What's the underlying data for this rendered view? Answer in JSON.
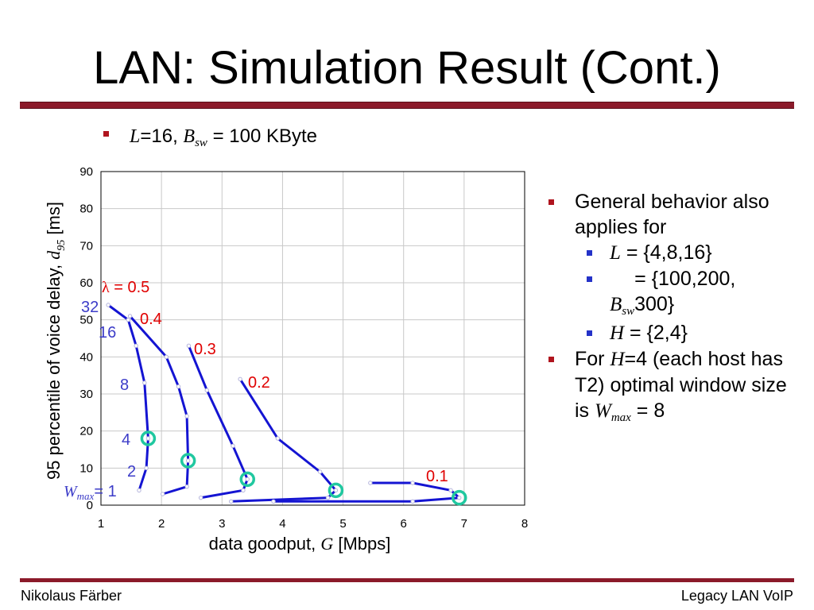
{
  "slide": {
    "title": "LAN: Simulation Result (Cont.)",
    "footer_left": "Nikolaus Färber",
    "footer_right": "Legacy LAN VoIP",
    "params": {
      "L_sym": "L",
      "L_val": "=16, ",
      "B_sym": "B",
      "B_sub": "sw",
      "B_val": " = 100 KByte"
    },
    "bullets": {
      "b1": "General behavior also applies for",
      "s1_sym": "L",
      "s1_val": " = {4,8,16}",
      "s2_sym": "B",
      "s2_sub": "sw",
      "s2_val": " = {100,200, 300}",
      "s3_sym": "H",
      "s3_val": " = {2,4}",
      "b2_a": "For ",
      "b2_sym": "H",
      "b2_b": "=4 (each host has T2) optimal window size is ",
      "b2_wsym": "W",
      "b2_wsub": "max",
      "b2_c": " = 8"
    },
    "colors": {
      "accent": "#8b1a2a",
      "bullet_main": "#b0141e",
      "bullet_sub": "#2432c8",
      "curve": "#1414d2",
      "lambda_label": "#e00000",
      "window_label": "#3c3cc8",
      "optimum_marker": "#20c8a0"
    }
  },
  "chart_data": {
    "type": "line",
    "xlabel": "data goodput, ",
    "xlabel_sym": "G",
    "xlabel_unit": " [Mbps]",
    "ylabel": "95 percentile of voice delay, ",
    "ylabel_sym": "d",
    "ylabel_sub": "95",
    "ylabel_unit": " [ms]",
    "xlim": [
      1,
      8
    ],
    "ylim": [
      0,
      90
    ],
    "xticks": [
      1,
      2,
      3,
      4,
      5,
      6,
      7,
      8
    ],
    "yticks": [
      0,
      10,
      20,
      30,
      40,
      50,
      60,
      70,
      80,
      90
    ],
    "grid": true,
    "series": [
      {
        "name": "λ = 0.5",
        "x": [
          1.63,
          1.75,
          1.78,
          1.72,
          1.58,
          1.45,
          1.12
        ],
        "y": [
          4,
          10,
          18,
          33,
          43,
          50,
          54
        ]
      },
      {
        "name": "0.4",
        "x": [
          2.02,
          2.42,
          2.44,
          2.42,
          2.28,
          2.08,
          1.48
        ],
        "y": [
          3,
          5,
          12,
          24,
          32,
          40,
          51
        ]
      },
      {
        "name": "0.3",
        "x": [
          2.65,
          3.35,
          3.42,
          3.18,
          2.75,
          2.45
        ],
        "y": [
          2,
          4,
          7,
          16,
          31,
          43
        ]
      },
      {
        "name": "0.2",
        "x": [
          3.15,
          4.75,
          4.88,
          4.62,
          3.92,
          3.3
        ],
        "y": [
          1,
          2,
          4,
          9,
          18,
          34
        ]
      },
      {
        "name": "0.1",
        "x": [
          3.85,
          6.15,
          6.92,
          6.78,
          6.15,
          5.45
        ],
        "y": [
          1,
          1,
          2,
          4,
          6,
          6
        ]
      }
    ],
    "lambda_label_sym": "λ",
    "window_labels": {
      "w1_sym": "W",
      "w1_sub": "max",
      "w1": "= 1",
      "w2": "2",
      "w4": "4",
      "w8": "8",
      "w16": "16",
      "w32": "32"
    },
    "optimal_points": {
      "x": [
        1.78,
        2.44,
        3.42,
        4.88,
        6.92
      ],
      "y": [
        18,
        12,
        7,
        4,
        2
      ]
    }
  }
}
